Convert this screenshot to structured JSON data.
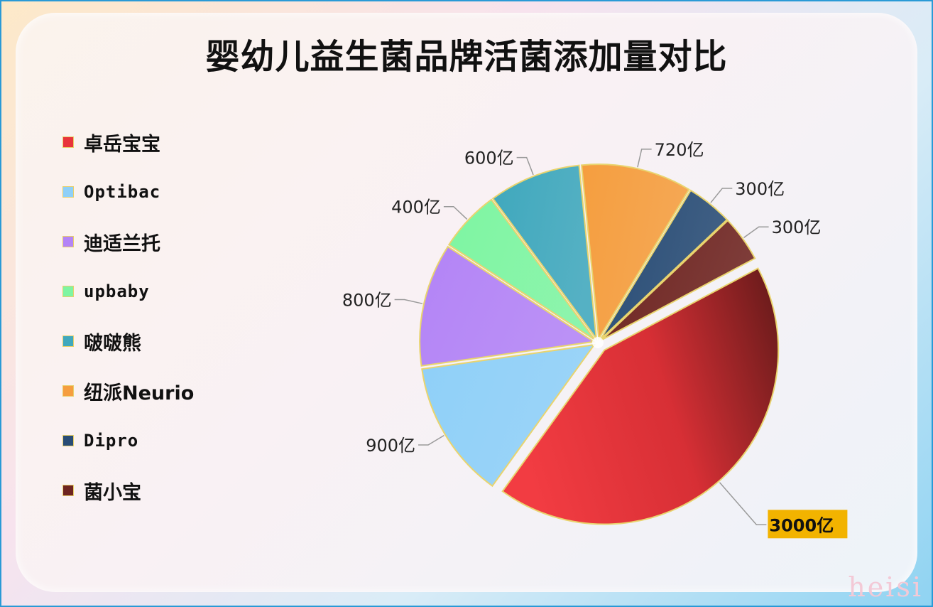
{
  "chart_data": {
    "type": "pie",
    "title": "婴幼儿益生菌品牌活菌添加量对比",
    "unit": "亿",
    "categories": [
      "卓岳宝宝",
      "Optibac",
      "迪适兰托",
      "upbaby",
      "啵啵熊",
      "纽派Neurio",
      "Dipro",
      "菌小宝"
    ],
    "values": [
      3000,
      900,
      800,
      400,
      600,
      720,
      300,
      300
    ],
    "data_labels": [
      "3000亿",
      "900亿",
      "800亿",
      "400亿",
      "600亿",
      "720亿",
      "300亿",
      "300亿"
    ],
    "colors": [
      "#e8343a",
      "#8fd0f8",
      "#b384f6",
      "#7ef5a2",
      "#3fa8bd",
      "#f59e3f",
      "#284c75",
      "#6e2420"
    ],
    "legend_placement": "left",
    "highlighted_slice": "卓岳宝宝"
  },
  "watermark": "heisi"
}
